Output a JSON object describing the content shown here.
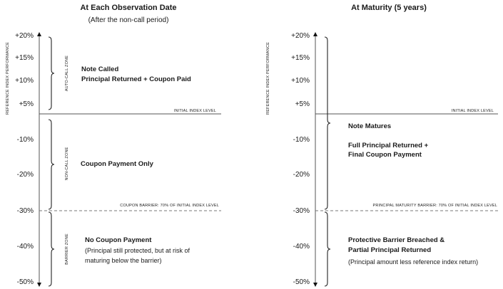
{
  "left_panel": {
    "title": "At Each Observation Date",
    "subtitle": "(After the non-call period)",
    "y_axis_title": "REFERENCE INDEX PERFORMANCE",
    "ticks": [
      "+20%",
      "+15%",
      "+10%",
      "+5%",
      "-10%",
      "-20%",
      "-30%",
      "-40%",
      "-50%"
    ],
    "initial_level_label": "INITIAL INDEX LEVEL",
    "barrier_label": "COUPON BARRIER: 70% OF INITIAL INDEX LEVEL",
    "zones": [
      "AUTO-CALL ZONE",
      "NON-CALL ZONE",
      "BARRIER ZONE"
    ],
    "auto_call": {
      "heading": "Note Called",
      "line": "Principal Returned + Coupon Paid"
    },
    "non_call": {
      "heading": "Coupon Payment Only"
    },
    "barrier": {
      "heading": "No Coupon Payment",
      "note1": "(Principal still protected, but at risk of",
      "note2": "maturing below the barrier)"
    }
  },
  "right_panel": {
    "title": "At Maturity (5 years)",
    "y_axis_title": "REFERENCE INDEX PERFORMANCE",
    "ticks": [
      "+20%",
      "+15%",
      "+10%",
      "+5%",
      "-10%",
      "-20%",
      "-30%",
      "-40%",
      "-50%"
    ],
    "initial_level_label": "INITIAL INDEX LEVEL",
    "barrier_label": "PRINCIPAL MATURITY BARRIER: 70% OF INITIAL INDEX LEVEL",
    "above": {
      "heading": "Note Matures",
      "line1": "Full Principal Returned +",
      "line2": "Final Coupon Payment"
    },
    "below": {
      "line1": "Protective Barrier Breached &",
      "line2": "Partial Principal Returned",
      "note": "(Principal amount less reference index return)"
    }
  }
}
